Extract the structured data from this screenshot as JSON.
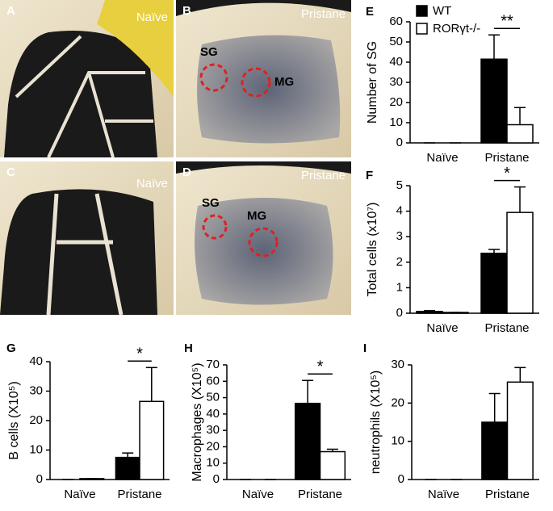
{
  "photos": [
    {
      "letter": "A",
      "label": "Naïve"
    },
    {
      "letter": "B",
      "label": "Pristane",
      "annotations": [
        "SG",
        "MG"
      ]
    },
    {
      "letter": "C",
      "label": "Naïve"
    },
    {
      "letter": "D",
      "label": "Pristane",
      "annotations": [
        "SG",
        "MG"
      ]
    }
  ],
  "chart_data": [
    {
      "type": "bar",
      "panel": "E",
      "y_label": "Number of SG",
      "categories": [
        "Naïve",
        "Pristane"
      ],
      "series": [
        {
          "name": "WT",
          "color": "#000000",
          "values": [
            0,
            41.5
          ],
          "errors": [
            0,
            12
          ]
        },
        {
          "name": "RORγt-/-",
          "color": "#ffffff",
          "values": [
            0,
            9
          ],
          "errors": [
            0,
            8.5
          ]
        }
      ],
      "ylim": [
        0,
        60
      ],
      "yticks": [
        0,
        10,
        20,
        30,
        40,
        50,
        60
      ],
      "legend": true,
      "significance": "**"
    },
    {
      "type": "bar",
      "panel": "F",
      "y_label": "Total cells (x10⁷)",
      "categories": [
        "Naïve",
        "Pristane"
      ],
      "series": [
        {
          "name": "WT",
          "color": "#000000",
          "values": [
            0.07,
            2.35
          ],
          "errors": [
            0.03,
            0.15
          ]
        },
        {
          "name": "RORγt-/-",
          "color": "#ffffff",
          "values": [
            0.03,
            3.95
          ],
          "errors": [
            0,
            1
          ]
        }
      ],
      "ylim": [
        0,
        5
      ],
      "yticks": [
        0,
        1,
        2,
        3,
        4,
        5
      ],
      "legend": false,
      "significance": "*"
    },
    {
      "type": "bar",
      "panel": "G",
      "y_label": "B cells (X10⁵)",
      "categories": [
        "Naïve",
        "Pristane"
      ],
      "series": [
        {
          "name": "WT",
          "color": "#000000",
          "values": [
            0,
            7.5
          ],
          "errors": [
            0,
            1.5
          ]
        },
        {
          "name": "RORγt-/-",
          "color": "#ffffff",
          "values": [
            0.3,
            26.5
          ],
          "errors": [
            0,
            11.5
          ]
        }
      ],
      "ylim": [
        0,
        40
      ],
      "yticks": [
        0,
        10,
        20,
        30,
        40
      ],
      "legend": false,
      "significance": "*"
    },
    {
      "type": "bar",
      "panel": "H",
      "y_label": "Macrophages (X10⁵)",
      "categories": [
        "Naïve",
        "Pristane"
      ],
      "series": [
        {
          "name": "WT",
          "color": "#000000",
          "values": [
            0,
            46.5
          ],
          "errors": [
            0,
            14
          ]
        },
        {
          "name": "RORγt-/-",
          "color": "#ffffff",
          "values": [
            0,
            17
          ],
          "errors": [
            0,
            1.5
          ]
        }
      ],
      "ylim": [
        0,
        70
      ],
      "yticks": [
        0,
        10,
        20,
        30,
        40,
        50,
        60,
        70
      ],
      "legend": false,
      "significance": "*"
    },
    {
      "type": "bar",
      "panel": "I",
      "y_label": "neutrophils (X10⁵)",
      "categories": [
        "Naïve",
        "Pristane"
      ],
      "series": [
        {
          "name": "WT",
          "color": "#000000",
          "values": [
            0,
            15
          ],
          "errors": [
            0,
            7.5
          ]
        },
        {
          "name": "RORγt-/-",
          "color": "#ffffff",
          "values": [
            0,
            25.5
          ],
          "errors": [
            0,
            3.8
          ]
        }
      ],
      "ylim": [
        0,
        30
      ],
      "yticks": [
        0,
        10,
        20,
        30
      ],
      "legend": false
    }
  ]
}
